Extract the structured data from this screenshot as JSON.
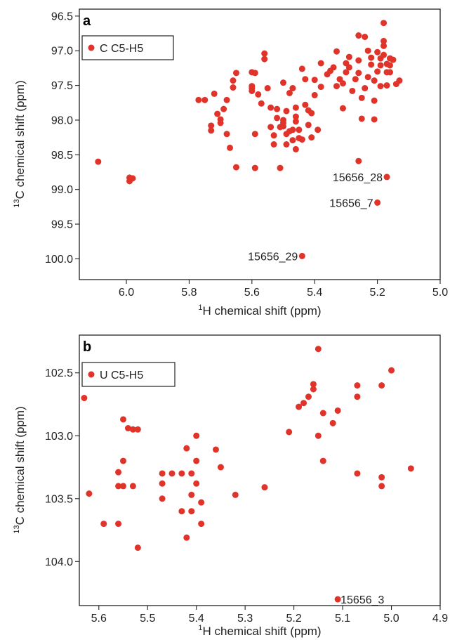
{
  "chart_data": [
    {
      "type": "scatter",
      "panel_label": "a",
      "legend": "C C5-H5",
      "color": "#e0332a",
      "xlabel_sup": "1",
      "xlabel": "H chemical shift (ppm)",
      "ylabel_sup": "13",
      "ylabel": "C chemical shift (ppm)",
      "xlim": [
        6.15,
        5.0
      ],
      "ylim": [
        100.3,
        96.4
      ],
      "x_reversed": true,
      "y_reversed": true,
      "xticks": [
        "6.0",
        "5.8",
        "5.6",
        "5.4",
        "5.2",
        "5.0"
      ],
      "xtick_values": [
        6.0,
        5.8,
        5.6,
        5.4,
        5.2,
        5.0
      ],
      "yticks": [
        "96.5",
        "97.0",
        "97.5",
        "98.0",
        "98.5",
        "99.0",
        "99.5",
        "100.0"
      ],
      "ytick_values": [
        96.5,
        97.0,
        97.5,
        98.0,
        98.5,
        99.0,
        99.5,
        100.0
      ],
      "annotations": [
        {
          "text": "15656_28",
          "x": 5.17,
          "y": 98.82
        },
        {
          "text": "15656_7",
          "x": 5.2,
          "y": 99.19
        },
        {
          "text": "15656_29",
          "x": 5.44,
          "y": 99.96
        }
      ],
      "points": [
        [
          6.09,
          98.6
        ],
        [
          5.99,
          98.83
        ],
        [
          5.99,
          98.88
        ],
        [
          5.98,
          98.84
        ],
        [
          5.77,
          97.71
        ],
        [
          5.75,
          97.71
        ],
        [
          5.73,
          98.08
        ],
        [
          5.73,
          98.15
        ],
        [
          5.72,
          97.62
        ],
        [
          5.71,
          97.91
        ],
        [
          5.7,
          97.99
        ],
        [
          5.7,
          98.04
        ],
        [
          5.69,
          97.84
        ],
        [
          5.68,
          97.71
        ],
        [
          5.68,
          98.2
        ],
        [
          5.67,
          98.4
        ],
        [
          5.66,
          97.53
        ],
        [
          5.66,
          97.43
        ],
        [
          5.65,
          97.32
        ],
        [
          5.65,
          98.68
        ],
        [
          5.6,
          97.51
        ],
        [
          5.6,
          97.58
        ],
        [
          5.6,
          97.31
        ],
        [
          5.6,
          97.54
        ],
        [
          5.59,
          98.2
        ],
        [
          5.59,
          98.69
        ],
        [
          5.59,
          97.32
        ],
        [
          5.58,
          97.63
        ],
        [
          5.57,
          97.76
        ],
        [
          5.56,
          97.04
        ],
        [
          5.56,
          97.12
        ],
        [
          5.55,
          97.54
        ],
        [
          5.54,
          97.82
        ],
        [
          5.54,
          98.1
        ],
        [
          5.53,
          98.35
        ],
        [
          5.53,
          98.22
        ],
        [
          5.52,
          97.97
        ],
        [
          5.52,
          97.84
        ],
        [
          5.51,
          98.1
        ],
        [
          5.51,
          98.69
        ],
        [
          5.5,
          97.46
        ],
        [
          5.5,
          98.0
        ],
        [
          5.5,
          98.04
        ],
        [
          5.5,
          98.09
        ],
        [
          5.49,
          97.87
        ],
        [
          5.49,
          98.2
        ],
        [
          5.49,
          98.35
        ],
        [
          5.48,
          98.16
        ],
        [
          5.48,
          97.61
        ],
        [
          5.47,
          97.54
        ],
        [
          5.47,
          98.14
        ],
        [
          5.47,
          98.29
        ],
        [
          5.46,
          98.42
        ],
        [
          5.46,
          97.82
        ],
        [
          5.46,
          97.95
        ],
        [
          5.46,
          98.02
        ],
        [
          5.45,
          98.14
        ],
        [
          5.45,
          98.26
        ],
        [
          5.44,
          98.28
        ],
        [
          5.44,
          97.26
        ],
        [
          5.43,
          97.41
        ],
        [
          5.43,
          97.78
        ],
        [
          5.42,
          97.86
        ],
        [
          5.42,
          98.07
        ],
        [
          5.41,
          98.25
        ],
        [
          5.41,
          97.9
        ],
        [
          5.4,
          97.64
        ],
        [
          5.4,
          97.42
        ],
        [
          5.39,
          98.14
        ],
        [
          5.38,
          97.52
        ],
        [
          5.38,
          97.18
        ],
        [
          5.36,
          97.34
        ],
        [
          5.35,
          97.29
        ],
        [
          5.34,
          97.24
        ],
        [
          5.33,
          97.51
        ],
        [
          5.33,
          97.01
        ],
        [
          5.32,
          97.41
        ],
        [
          5.31,
          97.83
        ],
        [
          5.31,
          97.47
        ],
        [
          5.3,
          97.31
        ],
        [
          5.3,
          97.18
        ],
        [
          5.29,
          97.24
        ],
        [
          5.29,
          97.09
        ],
        [
          5.28,
          97.58
        ],
        [
          5.27,
          97.41
        ],
        [
          5.26,
          96.78
        ],
        [
          5.26,
          97.32
        ],
        [
          5.26,
          97.14
        ],
        [
          5.25,
          97.68
        ],
        [
          5.25,
          97.98
        ],
        [
          5.24,
          97.54
        ],
        [
          5.24,
          96.8
        ],
        [
          5.23,
          97.0
        ],
        [
          5.23,
          97.38
        ],
        [
          5.22,
          97.1
        ],
        [
          5.22,
          97.2
        ],
        [
          5.21,
          97.43
        ],
        [
          5.21,
          97.72
        ],
        [
          5.21,
          97.99
        ],
        [
          5.2,
          97.02
        ],
        [
          5.2,
          97.3
        ],
        [
          5.19,
          97.51
        ],
        [
          5.19,
          97.21
        ],
        [
          5.19,
          97.11
        ],
        [
          5.18,
          96.93
        ],
        [
          5.18,
          96.86
        ],
        [
          5.18,
          96.6
        ],
        [
          5.18,
          97.06
        ],
        [
          5.17,
          97.31
        ],
        [
          5.17,
          97.19
        ],
        [
          5.17,
          97.5
        ],
        [
          5.16,
          97.11
        ],
        [
          5.16,
          97.21
        ],
        [
          5.16,
          97.31
        ],
        [
          5.15,
          97.13
        ],
        [
          5.14,
          97.48
        ],
        [
          5.13,
          97.43
        ],
        [
          5.26,
          98.59
        ],
        [
          5.17,
          98.82
        ],
        [
          5.2,
          99.19
        ],
        [
          5.44,
          99.96
        ]
      ]
    },
    {
      "type": "scatter",
      "panel_label": "b",
      "legend": "U C5-H5",
      "color": "#e0332a",
      "xlabel_sup": "1",
      "xlabel": "H chemical shift (ppm)",
      "ylabel_sup": "13",
      "ylabel": "C chemical shift (ppm)",
      "xlim": [
        5.64,
        4.9
      ],
      "ylim": [
        104.35,
        102.2
      ],
      "x_reversed": true,
      "y_reversed": true,
      "xticks": [
        "5.6",
        "5.5",
        "5.4",
        "5.3",
        "5.2",
        "5.1",
        "5.0",
        "4.9"
      ],
      "xtick_values": [
        5.6,
        5.5,
        5.4,
        5.3,
        5.2,
        5.1,
        5.0,
        4.9
      ],
      "yticks": [
        "102.5",
        "103.0",
        "103.5",
        "104.0"
      ],
      "ytick_values": [
        102.5,
        103.0,
        103.5,
        104.0
      ],
      "annotations": [
        {
          "text": "15656_3",
          "x": 5.11,
          "y": 104.3
        }
      ],
      "points": [
        [
          5.63,
          102.7
        ],
        [
          5.62,
          103.46
        ],
        [
          5.59,
          103.7
        ],
        [
          5.56,
          103.4
        ],
        [
          5.56,
          103.7
        ],
        [
          5.56,
          103.29
        ],
        [
          5.55,
          102.87
        ],
        [
          5.55,
          103.2
        ],
        [
          5.55,
          103.4
        ],
        [
          5.54,
          102.94
        ],
        [
          5.53,
          103.4
        ],
        [
          5.53,
          102.95
        ],
        [
          5.52,
          102.95
        ],
        [
          5.52,
          103.89
        ],
        [
          5.47,
          103.3
        ],
        [
          5.47,
          103.38
        ],
        [
          5.47,
          103.5
        ],
        [
          5.45,
          103.3
        ],
        [
          5.43,
          103.3
        ],
        [
          5.43,
          103.6
        ],
        [
          5.42,
          103.1
        ],
        [
          5.42,
          103.81
        ],
        [
          5.41,
          103.47
        ],
        [
          5.41,
          103.6
        ],
        [
          5.41,
          103.3
        ],
        [
          5.4,
          103.2
        ],
        [
          5.4,
          103.0
        ],
        [
          5.4,
          103.38
        ],
        [
          5.39,
          103.53
        ],
        [
          5.39,
          103.7
        ],
        [
          5.36,
          103.11
        ],
        [
          5.35,
          103.25
        ],
        [
          5.32,
          103.47
        ],
        [
          5.26,
          103.41
        ],
        [
          5.21,
          102.97
        ],
        [
          5.19,
          102.77
        ],
        [
          5.18,
          102.74
        ],
        [
          5.17,
          102.69
        ],
        [
          5.16,
          102.63
        ],
        [
          5.16,
          102.59
        ],
        [
          5.15,
          102.31
        ],
        [
          5.15,
          103.0
        ],
        [
          5.14,
          103.2
        ],
        [
          5.14,
          102.82
        ],
        [
          5.12,
          102.9
        ],
        [
          5.11,
          102.8
        ],
        [
          5.07,
          102.6
        ],
        [
          5.07,
          102.69
        ],
        [
          5.07,
          103.3
        ],
        [
          5.02,
          103.4
        ],
        [
          5.02,
          102.6
        ],
        [
          5.02,
          103.33
        ],
        [
          5.0,
          102.48
        ],
        [
          4.96,
          103.26
        ],
        [
          5.11,
          104.3
        ]
      ]
    }
  ]
}
